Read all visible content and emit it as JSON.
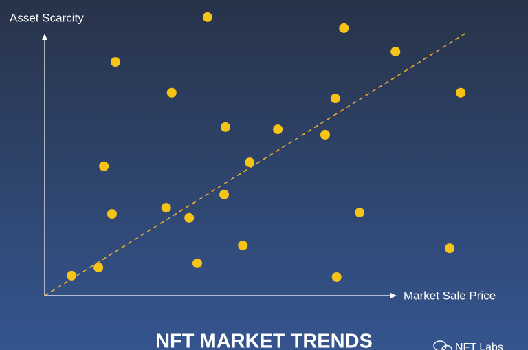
{
  "chart_data": {
    "type": "scatter",
    "title": "NFT MARKET TRENDS",
    "x_label": "Market Sale Price",
    "y_label": "Asset Scarcity",
    "watermark": "NFT Labs",
    "x": [
      38.2,
      70.2,
      82.3,
      16.6,
      29.8,
      68.2,
      97.6,
      42.4,
      54.7,
      65.8,
      13.9,
      48.1,
      42.1,
      28.5,
      15.8,
      33.9,
      73.9,
      46.5,
      95.0,
      35.8,
      12.6,
      6.3,
      68.5
    ],
    "values": [
      98.8,
      94.9,
      86.6,
      82.9,
      72.0,
      70.0,
      72.0,
      59.8,
      59.0,
      57.1,
      45.9,
      47.3,
      35.9,
      31.2,
      29.0,
      27.6,
      29.5,
      17.8,
      16.8,
      11.5,
      10.0,
      7.1,
      6.6
    ],
    "color": "#f6c416",
    "trend_line": {
      "x": [
        0,
        98.9
      ],
      "values": [
        0,
        93.2
      ],
      "color": "#f2b02a"
    },
    "xlim": [
      0,
      100
    ],
    "ylim": [
      0,
      100
    ]
  }
}
